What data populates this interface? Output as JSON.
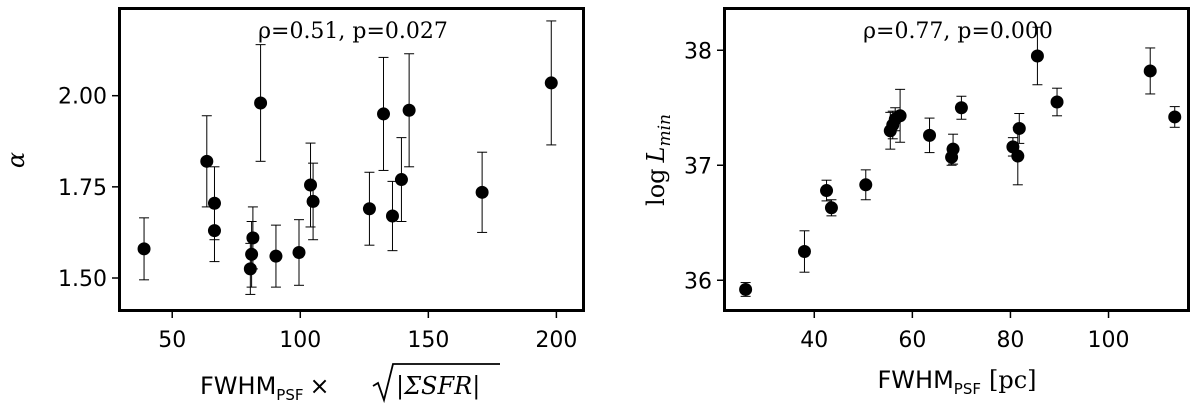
{
  "chart_data": [
    {
      "type": "scatter",
      "annotation": "ρ=0.51, p=0.027",
      "xlabel": "FWHM",
      "xlabel_sub": "PSF",
      "xlabel_rest": "×",
      "xlabel_sqrt": "|ΣSFR|",
      "ylabel": "α",
      "xlim": [
        30,
        210
      ],
      "ylim": [
        1.415,
        2.235
      ],
      "xticks": [
        50,
        100,
        150,
        200
      ],
      "xtick_labels": [
        "50",
        "100",
        "150",
        "200"
      ],
      "yticks": [
        1.5,
        1.75,
        2.0
      ],
      "ytick_labels": [
        "1.50",
        "1.75",
        "2.00"
      ],
      "grid": false,
      "points": [
        {
          "x": 39,
          "y": 1.58,
          "err": 0.085
        },
        {
          "x": 63.5,
          "y": 1.82,
          "err": 0.125
        },
        {
          "x": 66.5,
          "y": 1.705,
          "err": 0.1
        },
        {
          "x": 66.5,
          "y": 1.63,
          "err": 0.085
        },
        {
          "x": 80.5,
          "y": 1.525,
          "err": 0.07
        },
        {
          "x": 81,
          "y": 1.565,
          "err": 0.09
        },
        {
          "x": 81.5,
          "y": 1.61,
          "err": 0.085
        },
        {
          "x": 84.5,
          "y": 1.98,
          "err": 0.16
        },
        {
          "x": 90.5,
          "y": 1.56,
          "err": 0.085
        },
        {
          "x": 99.5,
          "y": 1.57,
          "err": 0.09
        },
        {
          "x": 104,
          "y": 1.755,
          "err": 0.115
        },
        {
          "x": 105,
          "y": 1.71,
          "err": 0.105
        },
        {
          "x": 127,
          "y": 1.69,
          "err": 0.1
        },
        {
          "x": 132.5,
          "y": 1.95,
          "err": 0.155
        },
        {
          "x": 136,
          "y": 1.67,
          "err": 0.095
        },
        {
          "x": 139.5,
          "y": 1.77,
          "err": 0.115
        },
        {
          "x": 142.5,
          "y": 1.96,
          "err": 0.155
        },
        {
          "x": 171,
          "y": 1.735,
          "err": 0.11
        },
        {
          "x": 198,
          "y": 2.035,
          "err": 0.17
        }
      ]
    },
    {
      "type": "scatter",
      "annotation": "ρ=0.77, p=0.000",
      "xlabel": "FWHM",
      "xlabel_sub": "PSF",
      "xlabel_rest": "[pc]",
      "ylabel": "log",
      "ylabel_var": "L",
      "ylabel_sub": "min",
      "xlim": [
        22,
        116
      ],
      "ylim": [
        35.75,
        38.35
      ],
      "xticks": [
        40,
        60,
        80,
        100
      ],
      "xtick_labels": [
        "40",
        "60",
        "80",
        "100"
      ],
      "yticks": [
        36,
        37,
        38
      ],
      "ytick_labels": [
        "36",
        "37",
        "38"
      ],
      "grid": false,
      "points": [
        {
          "x": 26,
          "y": 35.92,
          "err": 0.06
        },
        {
          "x": 38,
          "y": 36.25,
          "err": 0.18
        },
        {
          "x": 42.5,
          "y": 36.78,
          "err": 0.09
        },
        {
          "x": 43.5,
          "y": 36.63,
          "err": 0.07
        },
        {
          "x": 50.5,
          "y": 36.83,
          "err": 0.13
        },
        {
          "x": 55.5,
          "y": 37.3,
          "err": 0.16
        },
        {
          "x": 56,
          "y": 37.35,
          "err": 0.12
        },
        {
          "x": 56.5,
          "y": 37.4,
          "err": 0.1
        },
        {
          "x": 57.5,
          "y": 37.43,
          "err": 0.23
        },
        {
          "x": 63.5,
          "y": 37.26,
          "err": 0.15
        },
        {
          "x": 68,
          "y": 37.07,
          "err": 0.07
        },
        {
          "x": 68.3,
          "y": 37.14,
          "err": 0.13
        },
        {
          "x": 70,
          "y": 37.5,
          "err": 0.1
        },
        {
          "x": 80.5,
          "y": 37.16,
          "err": 0.08
        },
        {
          "x": 81.5,
          "y": 37.08,
          "err": 0.25
        },
        {
          "x": 81.8,
          "y": 37.32,
          "err": 0.13
        },
        {
          "x": 85.5,
          "y": 37.95,
          "err": 0.25
        },
        {
          "x": 89.5,
          "y": 37.55,
          "err": 0.12
        },
        {
          "x": 108.5,
          "y": 37.82,
          "err": 0.2
        },
        {
          "x": 113.5,
          "y": 37.42,
          "err": 0.09
        }
      ]
    }
  ]
}
